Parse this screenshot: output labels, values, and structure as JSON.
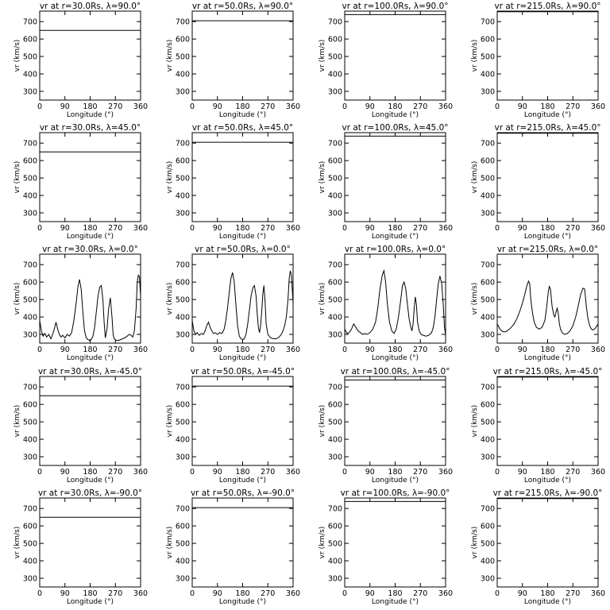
{
  "chart_data": {
    "type": "line",
    "layout": {
      "rows": 5,
      "columns": 4
    },
    "xlabel": "Longitude (°)",
    "ylabel": "vr (km/s)",
    "xlim": [
      0,
      360
    ],
    "ylim": [
      250,
      760
    ],
    "xticks": [
      0,
      90,
      180,
      270,
      360
    ],
    "yticks": [
      300,
      400,
      500,
      600,
      700
    ],
    "panels": [
      {
        "title": "vr at r=30.0Rs, λ=90.0°",
        "series": [
          {
            "x": [
              0,
              360
            ],
            "y": [
              650,
              650
            ]
          }
        ]
      },
      {
        "title": "vr at r=50.0Rs, λ=90.0°",
        "series": [
          {
            "x": [
              0,
              360
            ],
            "y": [
              705,
              705
            ]
          }
        ]
      },
      {
        "title": "vr at r=100.0Rs, λ=90.0°",
        "series": [
          {
            "x": [
              0,
              360
            ],
            "y": [
              740,
              740
            ]
          }
        ]
      },
      {
        "title": "vr at r=215.0Rs, λ=90.0°",
        "series": [
          {
            "x": [
              0,
              360
            ],
            "y": [
              757,
              757
            ]
          }
        ]
      },
      {
        "title": "vr at r=30.0Rs, λ=45.0°",
        "series": [
          {
            "x": [
              0,
              360
            ],
            "y": [
              650,
              650
            ]
          }
        ]
      },
      {
        "title": "vr at r=50.0Rs, λ=45.0°",
        "series": [
          {
            "x": [
              0,
              360
            ],
            "y": [
              705,
              705
            ]
          }
        ]
      },
      {
        "title": "vr at r=100.0Rs, λ=45.0°",
        "series": [
          {
            "x": [
              0,
              360
            ],
            "y": [
              740,
              740
            ]
          }
        ]
      },
      {
        "title": "vr at r=215.0Rs, λ=45.0°",
        "series": [
          {
            "x": [
              0,
              360
            ],
            "y": [
              757,
              757
            ]
          }
        ]
      },
      {
        "title": "vr at r=30.0Rs, λ=0.0°",
        "series": [
          {
            "x": [
              0,
              6,
              12,
              18,
              25,
              32,
              40,
              46,
              52,
              58,
              64,
              70,
              76,
              82,
              90,
              98,
              106,
              114,
              122,
              130,
              136,
              142,
              148,
              154,
              160,
              166,
              172,
              178,
              184,
              190,
              196,
              202,
              208,
              214,
              220,
              226,
              230,
              234,
              240,
              246,
              252,
              258,
              262,
              266,
              270,
              274,
              280,
              288,
              296,
              304,
              312,
              320,
              326,
              332,
              338,
              344,
              348,
              352,
              356,
              360
            ],
            "y": [
              380,
              320,
              290,
              305,
              285,
              300,
              275,
              300,
              330,
              370,
              330,
              300,
              285,
              295,
              280,
              300,
              290,
              310,
              380,
              480,
              570,
              615,
              560,
              430,
              320,
              280,
              270,
              265,
              270,
              290,
              340,
              430,
              520,
              570,
              580,
              490,
              370,
              280,
              330,
              450,
              510,
              400,
              300,
              275,
              270,
              265,
              265,
              270,
              275,
              280,
              290,
              300,
              295,
              285,
              320,
              450,
              600,
              640,
              630,
              520
            ]
          }
        ]
      },
      {
        "title": "vr at r=50.0Rs, λ=0.0°",
        "series": [
          {
            "x": [
              0,
              6,
              12,
              18,
              25,
              32,
              40,
              46,
              52,
              58,
              64,
              70,
              76,
              82,
              90,
              98,
              106,
              114,
              120,
              126,
              132,
              138,
              144,
              150,
              156,
              162,
              168,
              174,
              180,
              186,
              192,
              198,
              204,
              210,
              216,
              222,
              228,
              232,
              236,
              240,
              244,
              248,
              252,
              256,
              260,
              264,
              270,
              280,
              290,
              300,
              310,
              318,
              324,
              330,
              336,
              342,
              346,
              350,
              354,
              360
            ],
            "y": [
              380,
              320,
              300,
              310,
              295,
              305,
              300,
              320,
              350,
              370,
              340,
              320,
              305,
              310,
              300,
              310,
              305,
              330,
              380,
              450,
              540,
              620,
              655,
              600,
              470,
              350,
              290,
              275,
              270,
              275,
              300,
              360,
              440,
              520,
              565,
              580,
              520,
              420,
              340,
              310,
              350,
              430,
              530,
              580,
              490,
              360,
              300,
              280,
              275,
              275,
              285,
              300,
              320,
              350,
              400,
              500,
              620,
              665,
              640,
              480
            ]
          }
        ]
      },
      {
        "title": "vr at r=100.0Rs, λ=0.0°",
        "series": [
          {
            "x": [
              0,
              8,
              16,
              24,
              32,
              40,
              48,
              56,
              64,
              72,
              80,
              90,
              100,
              110,
              118,
              126,
              134,
              140,
              146,
              152,
              160,
              168,
              176,
              184,
              192,
              200,
              206,
              212,
              218,
              224,
              230,
              236,
              240,
              244,
              248,
              252,
              256,
              260,
              266,
              272,
              280,
              290,
              300,
              310,
              316,
              322,
              328,
              334,
              340,
              346,
              352,
              356,
              360
            ],
            "y": [
              330,
              305,
              310,
              330,
              360,
              340,
              320,
              310,
              300,
              305,
              300,
              310,
              330,
              370,
              450,
              560,
              640,
              665,
              600,
              480,
              370,
              320,
              305,
              330,
              400,
              500,
              580,
              600,
              560,
              470,
              390,
              340,
              320,
              360,
              450,
              515,
              470,
              370,
              320,
              300,
              295,
              290,
              295,
              310,
              340,
              400,
              500,
              590,
              635,
              590,
              460,
              340,
              300
            ]
          }
        ]
      },
      {
        "title": "vr at r=215.0Rs, λ=0.0°",
        "series": [
          {
            "x": [
              0,
              10,
              20,
              30,
              40,
              50,
              60,
              70,
              80,
              90,
              100,
              106,
              112,
              116,
              120,
              126,
              132,
              140,
              150,
              160,
              170,
              176,
              182,
              186,
              190,
              196,
              202,
              206,
              210,
              214,
              218,
              222,
              226,
              232,
              240,
              250,
              260,
              270,
              280,
              290,
              298,
              306,
              312,
              318,
              324,
              330,
              336,
              342,
              350,
              360
            ],
            "y": [
              360,
              330,
              315,
              315,
              325,
              340,
              360,
              390,
              430,
              480,
              540,
              580,
              605,
              590,
              500,
              420,
              370,
              340,
              330,
              340,
              380,
              450,
              540,
              575,
              560,
              460,
              410,
              400,
              430,
              450,
              420,
              360,
              330,
              310,
              300,
              305,
              320,
              350,
              400,
              470,
              530,
              565,
              560,
              460,
              390,
              350,
              330,
              325,
              335,
              360
            ]
          }
        ]
      },
      {
        "title": "vr at r=30.0Rs, λ=-45.0°",
        "series": [
          {
            "x": [
              0,
              360
            ],
            "y": [
              650,
              650
            ]
          }
        ]
      },
      {
        "title": "vr at r=50.0Rs, λ=-45.0°",
        "series": [
          {
            "x": [
              0,
              360
            ],
            "y": [
              705,
              705
            ]
          }
        ]
      },
      {
        "title": "vr at r=100.0Rs, λ=-45.0°",
        "series": [
          {
            "x": [
              0,
              360
            ],
            "y": [
              740,
              740
            ]
          }
        ]
      },
      {
        "title": "vr at r=215.0Rs, λ=-45.0°",
        "series": [
          {
            "x": [
              0,
              360
            ],
            "y": [
              757,
              757
            ]
          }
        ]
      },
      {
        "title": "vr at r=30.0Rs, λ=-90.0°",
        "series": [
          {
            "x": [
              0,
              360
            ],
            "y": [
              650,
              650
            ]
          }
        ]
      },
      {
        "title": "vr at r=50.0Rs, λ=-90.0°",
        "series": [
          {
            "x": [
              0,
              360
            ],
            "y": [
              705,
              705
            ]
          }
        ]
      },
      {
        "title": "vr at r=100.0Rs, λ=-90.0°",
        "series": [
          {
            "x": [
              0,
              360
            ],
            "y": [
              740,
              740
            ]
          }
        ]
      },
      {
        "title": "vr at r=215.0Rs, λ=-90.0°",
        "series": [
          {
            "x": [
              0,
              360
            ],
            "y": [
              757,
              757
            ]
          }
        ]
      }
    ]
  }
}
